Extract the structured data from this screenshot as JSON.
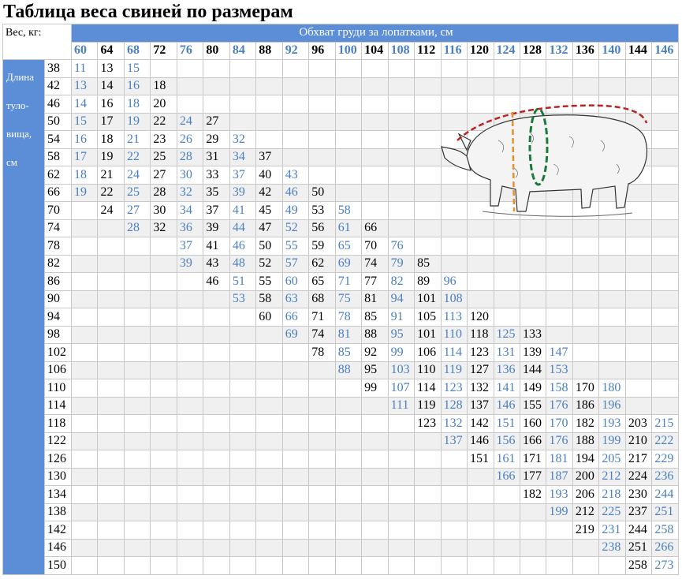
{
  "header": {
    "title": "Таблица веса свиней по размерам",
    "corner": "Вес, кг:",
    "span_label": "Обхват груди за лопатками, см",
    "side_label": [
      "Длина",
      "туло-",
      "вища,",
      "см"
    ]
  },
  "table": {
    "columns": [
      60,
      64,
      68,
      72,
      76,
      80,
      84,
      88,
      92,
      96,
      100,
      104,
      108,
      112,
      116,
      120,
      124,
      128,
      132,
      136,
      140,
      144,
      146
    ],
    "rows": [
      {
        "length": 38,
        "cells": [
          11,
          13,
          15,
          null,
          null,
          null,
          null,
          null,
          null,
          null,
          null,
          null,
          null,
          null,
          null,
          null,
          null,
          null,
          null,
          null,
          null,
          null,
          null
        ]
      },
      {
        "length": 42,
        "cells": [
          13,
          14,
          16,
          18,
          null,
          null,
          null,
          null,
          null,
          null,
          null,
          null,
          null,
          null,
          null,
          null,
          null,
          null,
          null,
          null,
          null,
          null,
          null
        ]
      },
      {
        "length": 46,
        "cells": [
          14,
          16,
          18,
          20,
          null,
          null,
          null,
          null,
          null,
          null,
          null,
          null,
          null,
          null,
          null,
          null,
          null,
          null,
          null,
          null,
          null,
          null,
          null
        ]
      },
      {
        "length": 50,
        "cells": [
          15,
          17,
          19,
          22,
          24,
          27,
          null,
          null,
          null,
          null,
          null,
          null,
          null,
          null,
          null,
          null,
          null,
          null,
          null,
          null,
          null,
          null,
          null
        ]
      },
      {
        "length": 54,
        "cells": [
          16,
          18,
          21,
          23,
          26,
          29,
          32,
          null,
          null,
          null,
          null,
          null,
          null,
          null,
          null,
          null,
          null,
          null,
          null,
          null,
          null,
          null,
          null
        ]
      },
      {
        "length": 58,
        "cells": [
          17,
          19,
          22,
          25,
          28,
          31,
          34,
          37,
          null,
          null,
          null,
          null,
          null,
          null,
          null,
          null,
          null,
          null,
          null,
          null,
          null,
          null,
          null
        ]
      },
      {
        "length": 62,
        "cells": [
          18,
          21,
          24,
          27,
          30,
          33,
          37,
          40,
          43,
          null,
          null,
          null,
          null,
          null,
          null,
          null,
          null,
          null,
          null,
          null,
          null,
          null,
          null
        ]
      },
      {
        "length": 66,
        "cells": [
          19,
          22,
          25,
          28,
          32,
          35,
          39,
          42,
          46,
          50,
          null,
          null,
          null,
          null,
          null,
          null,
          null,
          null,
          null,
          null,
          null,
          null,
          null
        ]
      },
      {
        "length": 70,
        "cells": [
          null,
          24,
          27,
          30,
          34,
          37,
          41,
          45,
          49,
          53,
          58,
          null,
          null,
          null,
          null,
          null,
          null,
          null,
          null,
          null,
          null,
          null,
          null
        ]
      },
      {
        "length": 74,
        "cells": [
          null,
          null,
          28,
          32,
          36,
          39,
          44,
          47,
          52,
          56,
          61,
          66,
          null,
          null,
          null,
          null,
          null,
          null,
          null,
          null,
          null,
          null,
          null
        ]
      },
      {
        "length": 78,
        "cells": [
          null,
          null,
          null,
          null,
          37,
          41,
          46,
          50,
          55,
          59,
          65,
          70,
          76,
          null,
          null,
          null,
          null,
          null,
          null,
          null,
          null,
          null,
          null
        ]
      },
      {
        "length": 82,
        "cells": [
          null,
          null,
          null,
          null,
          39,
          43,
          48,
          52,
          57,
          62,
          69,
          74,
          79,
          85,
          null,
          null,
          null,
          null,
          null,
          null,
          null,
          null,
          null
        ]
      },
      {
        "length": 86,
        "cells": [
          null,
          null,
          null,
          null,
          null,
          46,
          51,
          55,
          60,
          65,
          71,
          77,
          82,
          89,
          96,
          null,
          null,
          null,
          null,
          null,
          null,
          null,
          null
        ]
      },
      {
        "length": 90,
        "cells": [
          null,
          null,
          null,
          null,
          null,
          null,
          53,
          58,
          63,
          68,
          75,
          81,
          94,
          101,
          108,
          null,
          null,
          null,
          null,
          null,
          null,
          null,
          null
        ]
      },
      {
        "length": 94,
        "cells": [
          null,
          null,
          null,
          null,
          null,
          null,
          null,
          60,
          66,
          71,
          78,
          85,
          91,
          105,
          113,
          120,
          null,
          null,
          null,
          null,
          null,
          null,
          null
        ]
      },
      {
        "length": 98,
        "cells": [
          null,
          null,
          null,
          null,
          null,
          null,
          null,
          null,
          69,
          74,
          81,
          88,
          95,
          101,
          110,
          118,
          125,
          133,
          null,
          null,
          null,
          null,
          null
        ]
      },
      {
        "length": 102,
        "cells": [
          null,
          null,
          null,
          null,
          null,
          null,
          null,
          null,
          null,
          78,
          85,
          92,
          99,
          106,
          114,
          123,
          131,
          139,
          147,
          null,
          null,
          null,
          null
        ]
      },
      {
        "length": 106,
        "cells": [
          null,
          null,
          null,
          null,
          null,
          null,
          null,
          null,
          null,
          null,
          88,
          95,
          103,
          110,
          119,
          127,
          136,
          144,
          153,
          null,
          null,
          null,
          null
        ]
      },
      {
        "length": 110,
        "cells": [
          null,
          null,
          null,
          null,
          null,
          null,
          null,
          null,
          null,
          null,
          null,
          99,
          107,
          114,
          123,
          132,
          141,
          149,
          158,
          170,
          180,
          null,
          null
        ]
      },
      {
        "length": 114,
        "cells": [
          null,
          null,
          null,
          null,
          null,
          null,
          null,
          null,
          null,
          null,
          null,
          null,
          111,
          119,
          128,
          137,
          146,
          155,
          176,
          186,
          196,
          null,
          null
        ]
      },
      {
        "length": 118,
        "cells": [
          null,
          null,
          null,
          null,
          null,
          null,
          null,
          null,
          null,
          null,
          null,
          null,
          null,
          123,
          132,
          142,
          151,
          160,
          170,
          182,
          193,
          203,
          215
        ]
      },
      {
        "length": 122,
        "cells": [
          null,
          null,
          null,
          null,
          null,
          null,
          null,
          null,
          null,
          null,
          null,
          null,
          null,
          null,
          137,
          146,
          156,
          166,
          176,
          188,
          199,
          210,
          222
        ]
      },
      {
        "length": 126,
        "cells": [
          null,
          null,
          null,
          null,
          null,
          null,
          null,
          null,
          null,
          null,
          null,
          null,
          null,
          null,
          null,
          151,
          161,
          171,
          181,
          194,
          205,
          217,
          229
        ]
      },
      {
        "length": 130,
        "cells": [
          null,
          null,
          null,
          null,
          null,
          null,
          null,
          null,
          null,
          null,
          null,
          null,
          null,
          null,
          null,
          null,
          166,
          177,
          187,
          200,
          212,
          224,
          236
        ]
      },
      {
        "length": 134,
        "cells": [
          null,
          null,
          null,
          null,
          null,
          null,
          null,
          null,
          null,
          null,
          null,
          null,
          null,
          null,
          null,
          null,
          null,
          182,
          193,
          206,
          218,
          230,
          244
        ]
      },
      {
        "length": 138,
        "cells": [
          null,
          null,
          null,
          null,
          null,
          null,
          null,
          null,
          null,
          null,
          null,
          null,
          null,
          null,
          null,
          null,
          null,
          null,
          199,
          212,
          225,
          237,
          251
        ]
      },
      {
        "length": 142,
        "cells": [
          null,
          null,
          null,
          null,
          null,
          null,
          null,
          null,
          null,
          null,
          null,
          null,
          null,
          null,
          null,
          null,
          null,
          null,
          null,
          219,
          231,
          244,
          258
        ]
      },
      {
        "length": 146,
        "cells": [
          null,
          null,
          null,
          null,
          null,
          null,
          null,
          null,
          null,
          null,
          null,
          null,
          null,
          null,
          null,
          null,
          null,
          null,
          null,
          null,
          238,
          251,
          266
        ]
      },
      {
        "length": 150,
        "cells": [
          null,
          null,
          null,
          null,
          null,
          null,
          null,
          null,
          null,
          null,
          null,
          null,
          null,
          null,
          null,
          null,
          null,
          null,
          null,
          null,
          null,
          258,
          273
        ]
      }
    ]
  }
}
